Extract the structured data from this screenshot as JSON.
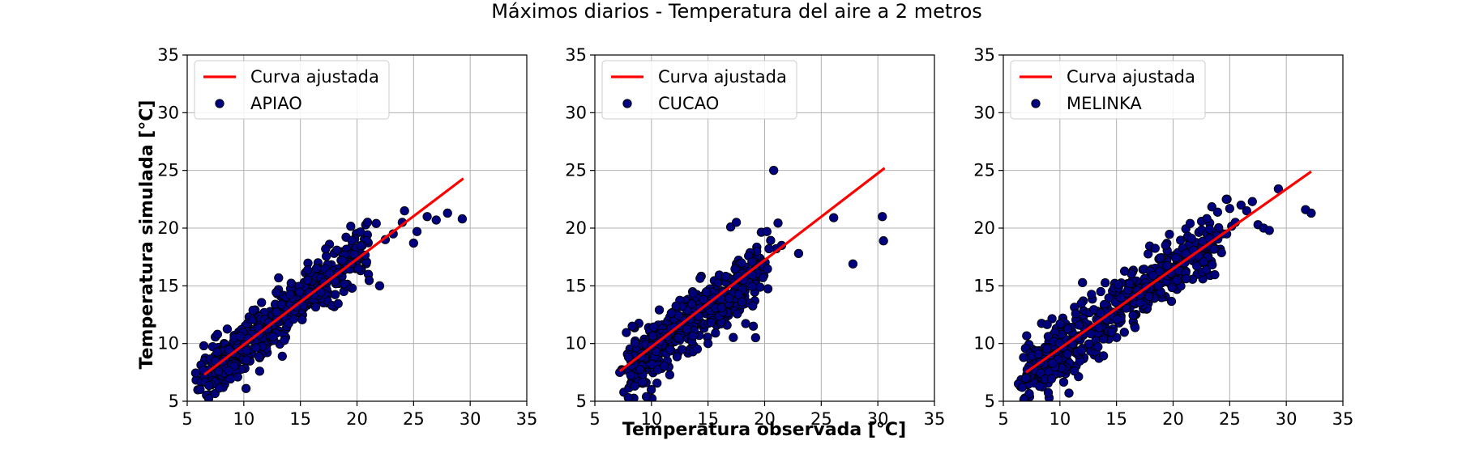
{
  "chart_data": {
    "type": "scatter",
    "title": "Máximos diarios - Temperatura del aire a 2 metros",
    "xlabel": "Temperatura observada [°C]",
    "ylabel": "Temperatura simulada [°C]",
    "xlim": [
      5,
      35
    ],
    "ylim": [
      5,
      35
    ],
    "xticks": [
      5,
      10,
      15,
      20,
      25,
      30,
      35
    ],
    "yticks": [
      5,
      10,
      15,
      20,
      25,
      30,
      35
    ],
    "grid": true,
    "legend_position": "top-left",
    "fit_label": "Curva ajustada",
    "colors": {
      "points": "#00007f",
      "point_edge": "#000000",
      "fit": "#ff0000",
      "grid": "#b0b0b0"
    },
    "panels": [
      {
        "station": "APIAO",
        "fit_line": {
          "x": [
            6.5,
            29.4
          ],
          "y": [
            7.3,
            24.3
          ]
        },
        "cloud": {
          "x_min": 7,
          "x_max": 21,
          "slope": 0.77,
          "intercept": 2.3,
          "spread": 1.2,
          "count": 520
        },
        "points": [
          [
            6.4,
            7.7
          ],
          [
            10.2,
            6.1
          ],
          [
            13.4,
            8.9
          ],
          [
            22.0,
            15.0
          ],
          [
            21.7,
            20.4
          ],
          [
            22.5,
            19.0
          ],
          [
            23.2,
            19.5
          ],
          [
            24.0,
            20.5
          ],
          [
            24.2,
            21.5
          ],
          [
            25.0,
            18.7
          ],
          [
            25.3,
            19.7
          ],
          [
            26.2,
            21.0
          ],
          [
            27.0,
            20.7
          ],
          [
            28.0,
            21.3
          ],
          [
            29.3,
            20.8
          ]
        ]
      },
      {
        "station": "CUCAO",
        "fit_line": {
          "x": [
            7.2,
            30.6
          ],
          "y": [
            7.6,
            25.2
          ]
        },
        "cloud": {
          "x_min": 8,
          "x_max": 20,
          "slope": 0.75,
          "intercept": 1.8,
          "spread": 1.3,
          "count": 520
        },
        "points": [
          [
            7.2,
            7.5
          ],
          [
            8.3,
            11.5
          ],
          [
            15.0,
            10.0
          ],
          [
            17.0,
            20.1
          ],
          [
            17.5,
            20.5
          ],
          [
            19.0,
            11.5
          ],
          [
            19.2,
            10.5
          ],
          [
            20.2,
            19.7
          ],
          [
            20.8,
            25.0
          ],
          [
            21.5,
            18.5
          ],
          [
            23.0,
            17.8
          ],
          [
            26.1,
            20.9
          ],
          [
            27.8,
            16.9
          ],
          [
            30.4,
            21.0
          ],
          [
            30.5,
            18.9
          ]
        ]
      },
      {
        "station": "MELINKA",
        "fit_line": {
          "x": [
            7.0,
            32.2
          ],
          "y": [
            7.5,
            24.9
          ]
        },
        "cloud": {
          "x_min": 7,
          "x_max": 24,
          "slope": 0.69,
          "intercept": 2.6,
          "spread": 1.35,
          "count": 560
        },
        "points": [
          [
            7.0,
            7.0
          ],
          [
            8.2,
            6.3
          ],
          [
            10.8,
            5.7
          ],
          [
            24.7,
            22.5
          ],
          [
            25.0,
            21.7
          ],
          [
            25.5,
            20.5
          ],
          [
            26.0,
            22.0
          ],
          [
            26.5,
            21.5
          ],
          [
            27.0,
            22.3
          ],
          [
            27.5,
            20.3
          ],
          [
            28.0,
            20.0
          ],
          [
            28.5,
            19.8
          ],
          [
            29.3,
            23.4
          ],
          [
            31.7,
            21.6
          ],
          [
            32.2,
            21.3
          ]
        ]
      }
    ]
  }
}
